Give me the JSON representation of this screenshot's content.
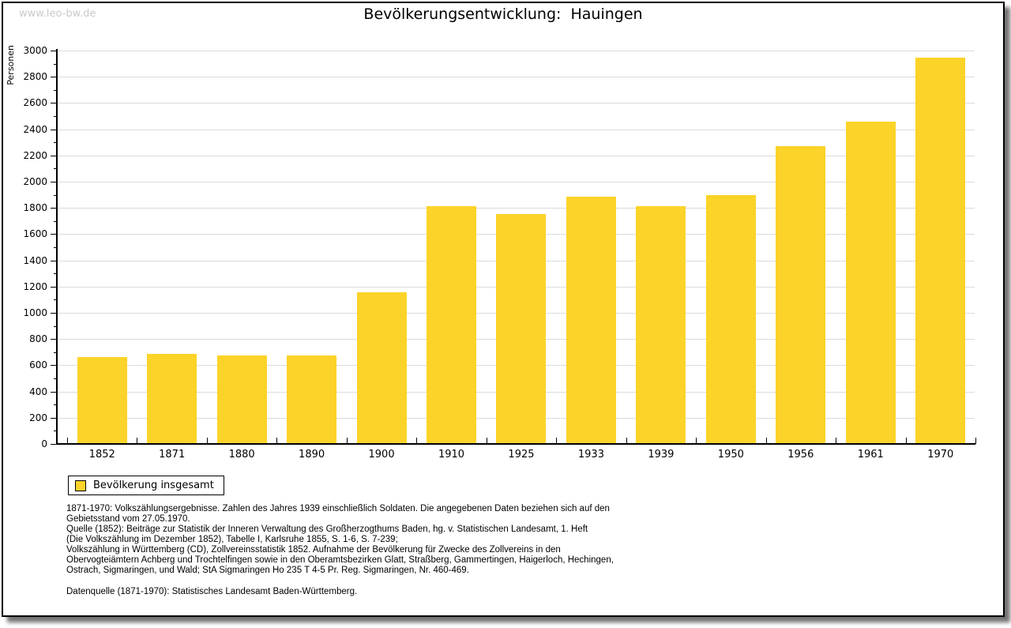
{
  "watermark": "www.leo-bw.de",
  "title": "Bevölkerungsentwicklung:  Hauingen",
  "chart_data": {
    "type": "bar",
    "title": "Bevölkerungsentwicklung: Hauingen",
    "xlabel": "",
    "ylabel": "Personen",
    "categories": [
      "1852",
      "1871",
      "1880",
      "1890",
      "1900",
      "1910",
      "1925",
      "1933",
      "1939",
      "1950",
      "1956",
      "1961",
      "1970"
    ],
    "values": [
      665,
      685,
      672,
      672,
      1155,
      1815,
      1755,
      1885,
      1815,
      1895,
      2270,
      2455,
      2945
    ],
    "ylim": [
      0,
      3000
    ],
    "ytick_step": 200,
    "yminor_step": 100,
    "grid": "horizontal",
    "bar_color": "#FCD328",
    "gridline_color": "#dbdbdb",
    "legend_entries": [
      "Bevölkerung insgesamt"
    ],
    "legend_position": "bottom-left"
  },
  "legend": {
    "label": "Bevölkerung insgesamt"
  },
  "footnote_text": "1871-1970: Volkszählungsergebnisse. Zahlen des Jahres 1939 einschließlich Soldaten. Die angegebenen Daten beziehen sich auf den\nGebietsstand vom 27.05.1970.\nQuelle (1852): Beiträge zur Statistik der Inneren Verwaltung des Großherzogthums Baden, hg. v. Statistischen Landesamt, 1. Heft\n(Die Volkszählung im Dezember 1852), Tabelle I, Karlsruhe 1855, S. 1-6, S. 7-239;\nVolkszählung in Württemberg (CD), Zollvereinsstatistik 1852. Aufnahme der Bevölkerung für Zwecke des Zollvereins in den\nObervogteiämtern Achberg und Trochtelfingen sowie in den Oberamtsbezirken Glatt, Straßberg, Gammertingen, Haigerloch, Hechingen,\nOstrach, Sigmaringen, und Wald; StA Sigmaringen Ho 235 T 4-5 Pr. Reg. Sigmaringen, Nr. 460-469.",
  "datasource_text": "Datenquelle (1871-1970): Statistisches Landesamt Baden-Württemberg."
}
